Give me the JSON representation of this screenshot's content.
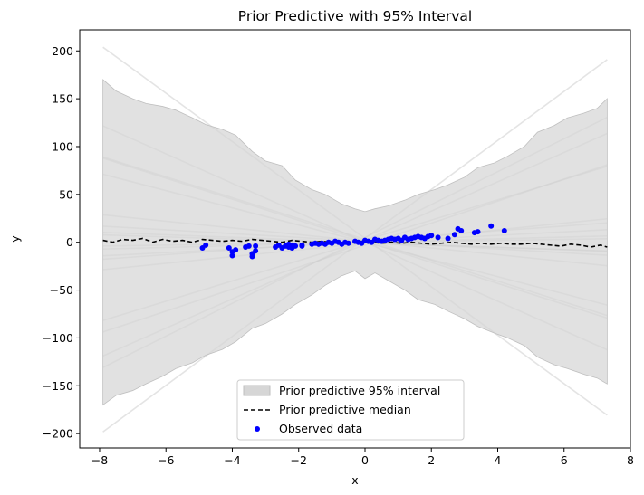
{
  "chart_data": {
    "type": "line",
    "title": "Prior Predictive with 95% Interval",
    "xlabel": "x",
    "ylabel": "y",
    "xlim": [
      -8.6,
      8.0
    ],
    "ylim": [
      -215,
      222
    ],
    "xticks": [
      -8,
      -6,
      -4,
      -2,
      0,
      2,
      4,
      6,
      8
    ],
    "yticks": [
      -200,
      -150,
      -100,
      -50,
      0,
      50,
      100,
      150,
      200
    ],
    "grid": false,
    "legend": {
      "placement": "bottom-center",
      "entries": [
        {
          "label": "Prior predictive 95% interval",
          "kind": "band",
          "color": "#d6d6d6"
        },
        {
          "label": "Prior predictive median",
          "kind": "dashed-line",
          "color": "#000000"
        },
        {
          "label": "Observed data",
          "kind": "marker",
          "color": "#0000ff"
        }
      ]
    },
    "colors": {
      "band": "#d6d6d6",
      "band_edge": "#bfbfbf",
      "draws": "#b3b3b3",
      "median": "#000000",
      "observed": "#0000ff"
    },
    "interval": {
      "x": [
        -7.9,
        -7.5,
        -7.0,
        -6.6,
        -6.1,
        -5.7,
        -5.2,
        -4.8,
        -4.3,
        -3.9,
        -3.4,
        -3.0,
        -2.5,
        -2.1,
        -1.6,
        -1.2,
        -0.7,
        -0.3,
        0.0,
        0.3,
        0.7,
        1.2,
        1.6,
        2.1,
        2.5,
        3.0,
        3.4,
        3.9,
        4.3,
        4.8,
        5.2,
        5.7,
        6.1,
        6.6,
        7.0,
        7.3
      ],
      "upper": [
        170,
        158,
        150,
        145,
        142,
        138,
        130,
        123,
        118,
        112,
        95,
        85,
        80,
        65,
        55,
        50,
        40,
        35,
        32,
        35,
        38,
        44,
        50,
        55,
        60,
        68,
        78,
        83,
        90,
        100,
        115,
        122,
        130,
        135,
        140,
        150
      ],
      "lower": [
        -170,
        -160,
        -155,
        -148,
        -140,
        -132,
        -126,
        -118,
        -112,
        -104,
        -90,
        -85,
        -75,
        -65,
        -55,
        -45,
        -35,
        -30,
        -38,
        -32,
        -40,
        -50,
        -60,
        -65,
        -72,
        -80,
        -88,
        -95,
        -100,
        -108,
        -120,
        -128,
        -132,
        -138,
        -142,
        -148
      ]
    },
    "prior_draws": [
      {
        "intercept": 4.0,
        "slope": -25.3
      },
      {
        "intercept": 4.0,
        "slope": 25.6
      },
      {
        "intercept": 0.0,
        "slope": -15.4
      },
      {
        "intercept": 5.0,
        "slope": 17.2
      },
      {
        "intercept": 3.0,
        "slope": -10.9
      },
      {
        "intercept": 2.0,
        "slope": 10.6
      },
      {
        "intercept": 2.0,
        "slope": 15.3
      },
      {
        "intercept": 1.0,
        "slope": -11.0
      },
      {
        "intercept": -3.0,
        "slope": 11.5
      },
      {
        "intercept": 0.0,
        "slope": -9.0
      },
      {
        "intercept": 1.0,
        "slope": -3.5
      },
      {
        "intercept": 2.0,
        "slope": 2.5
      },
      {
        "intercept": 0.0,
        "slope": -1.3
      },
      {
        "intercept": -1.0,
        "slope": 3.5
      },
      {
        "intercept": 0.0,
        "slope": 0.5
      },
      {
        "intercept": 1.0,
        "slope": -2.0
      },
      {
        "intercept": 0.0,
        "slope": 1.8
      },
      {
        "intercept": 0.0,
        "slope": 0.9
      },
      {
        "intercept": -1.0,
        "slope": -1.1
      }
    ],
    "median": {
      "x": [
        -7.9,
        -7.6,
        -7.3,
        -7.0,
        -6.7,
        -6.4,
        -6.1,
        -5.8,
        -5.5,
        -5.2,
        -4.9,
        -4.6,
        -4.3,
        -4.0,
        -3.7,
        -3.4,
        -3.1,
        -2.8,
        -2.5,
        -2.2,
        -1.9,
        -1.6,
        -1.3,
        -1.0,
        -0.7,
        -0.4,
        -0.1,
        0.2,
        0.5,
        0.8,
        1.1,
        1.4,
        1.7,
        2.0,
        2.3,
        2.6,
        2.9,
        3.2,
        3.5,
        3.8,
        4.1,
        4.4,
        4.7,
        5.0,
        5.3,
        5.6,
        5.9,
        6.2,
        6.5,
        6.8,
        7.1,
        7.3
      ],
      "y": [
        2,
        0,
        3,
        2,
        4,
        0,
        3,
        1,
        2,
        0,
        3,
        2,
        1,
        2,
        1,
        3,
        2,
        1,
        0,
        2,
        1,
        0,
        1,
        0,
        -1,
        0,
        1,
        0,
        -1,
        0,
        -1,
        0,
        -1,
        -2,
        -1,
        0,
        -1,
        -2,
        -1,
        -2,
        -1,
        -2,
        -2,
        -1,
        -2,
        -3,
        -4,
        -2,
        -3,
        -5,
        -3,
        -5
      ]
    },
    "observed": {
      "x": [
        -4.9,
        -4.8,
        -4.1,
        -4.0,
        -4.0,
        -3.9,
        -3.6,
        -3.5,
        -3.4,
        -3.4,
        -3.3,
        -3.3,
        -2.7,
        -2.6,
        -2.5,
        -2.4,
        -2.3,
        -2.3,
        -2.2,
        -2.2,
        -2.1,
        -1.9,
        -1.9,
        -1.6,
        -1.5,
        -1.4,
        -1.3,
        -1.2,
        -1.1,
        -1.0,
        -0.9,
        -0.8,
        -0.7,
        -0.6,
        -0.5,
        -0.3,
        -0.2,
        -0.1,
        0.0,
        0.1,
        0.2,
        0.3,
        0.4,
        0.5,
        0.6,
        0.7,
        0.8,
        0.9,
        1.0,
        1.1,
        1.2,
        1.3,
        1.4,
        1.5,
        1.6,
        1.7,
        1.8,
        1.9,
        2.0,
        2.2,
        2.5,
        2.7,
        2.8,
        2.9,
        3.3,
        3.4,
        3.8,
        4.2
      ],
      "y": [
        -6,
        -3,
        -6,
        -10,
        -14,
        -8,
        -5,
        -4,
        -15,
        -12,
        -4,
        -9,
        -5,
        -3,
        -6,
        -4,
        -2,
        -5,
        -3,
        -6,
        -4,
        -3,
        -4,
        -2,
        -1,
        -2,
        -1,
        -2,
        0,
        -1,
        1,
        0,
        -2,
        0,
        -1,
        1,
        0,
        -1,
        2,
        1,
        0,
        3,
        2,
        1,
        2,
        3,
        4,
        3,
        4,
        2,
        5,
        3,
        4,
        5,
        6,
        5,
        4,
        6,
        7,
        5,
        4,
        8,
        14,
        12,
        10,
        11,
        17,
        12
      ]
    }
  }
}
